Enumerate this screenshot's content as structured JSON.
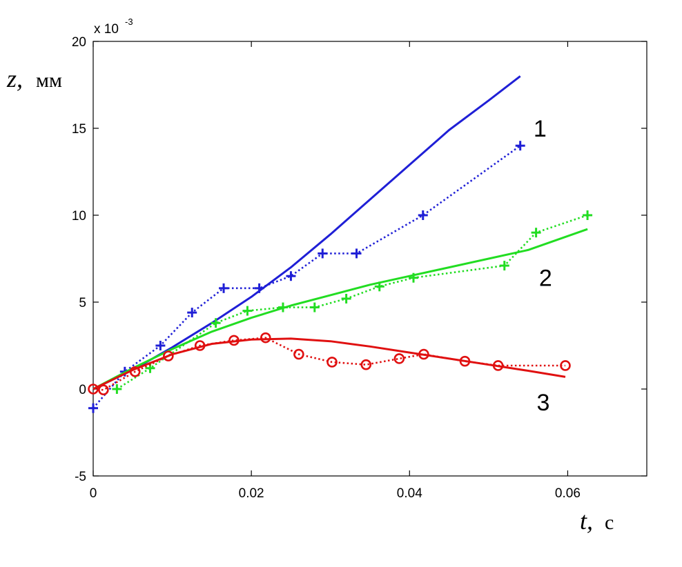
{
  "chart_data": {
    "type": "line",
    "xlim": [
      0,
      0.07
    ],
    "ylim": [
      -5,
      20
    ],
    "x_ticks": [
      0,
      0.02,
      0.04,
      0.06
    ],
    "x_tick_labels": [
      "0",
      "0.02",
      "0.04",
      "0.06"
    ],
    "y_ticks": [
      -5,
      0,
      5,
      10,
      15,
      20
    ],
    "y_tick_labels": [
      "-5",
      "0",
      "5",
      "10",
      "15",
      "20"
    ],
    "y_multiplier": {
      "base": "x 10",
      "exponent": "-3"
    },
    "ylabel": {
      "var": "z,",
      "unit": "мм"
    },
    "xlabel": {
      "var": "t,",
      "unit": "с"
    },
    "grid": false,
    "series": [
      {
        "id": "s1-model",
        "style": "solid",
        "color": "#1f1fd6",
        "marker": "none",
        "x": [
          0,
          0.005,
          0.01,
          0.015,
          0.02,
          0.025,
          0.03,
          0.035,
          0.04,
          0.045,
          0.05,
          0.054
        ],
        "y": [
          0,
          1.1,
          2.4,
          3.8,
          5.3,
          7.0,
          8.9,
          10.9,
          12.9,
          14.9,
          16.6,
          18.0
        ]
      },
      {
        "id": "s1-exp",
        "style": "dotted",
        "color": "#1f1fd6",
        "marker": "plus",
        "x": [
          0,
          0.004,
          0.0085,
          0.0125,
          0.0165,
          0.021,
          0.025,
          0.029,
          0.0333,
          0.0417,
          0.054
        ],
        "y": [
          -1.1,
          1.0,
          2.5,
          4.4,
          5.8,
          5.8,
          6.5,
          7.8,
          7.8,
          10.0,
          14.0
        ]
      },
      {
        "id": "s2-model",
        "style": "solid",
        "color": "#22dd22",
        "marker": "none",
        "x": [
          0,
          0.005,
          0.01,
          0.015,
          0.02,
          0.025,
          0.03,
          0.035,
          0.04,
          0.045,
          0.05,
          0.055,
          0.0625
        ],
        "y": [
          0,
          1.2,
          2.3,
          3.3,
          4.1,
          4.8,
          5.4,
          6.0,
          6.5,
          7.0,
          7.5,
          8.0,
          9.2
        ]
      },
      {
        "id": "s2-exp",
        "style": "dotted",
        "color": "#22dd22",
        "marker": "plus",
        "x": [
          0.003,
          0.0072,
          0.0155,
          0.0195,
          0.024,
          0.028,
          0.032,
          0.0362,
          0.0405,
          0.052,
          0.056,
          0.0625
        ],
        "y": [
          0.0,
          1.2,
          3.8,
          4.5,
          4.7,
          4.7,
          5.2,
          5.9,
          6.4,
          7.1,
          9.0,
          10.0
        ]
      },
      {
        "id": "s3-model",
        "style": "solid",
        "color": "#e01010",
        "marker": "none",
        "x": [
          0,
          0.005,
          0.01,
          0.015,
          0.02,
          0.025,
          0.03,
          0.035,
          0.04,
          0.045,
          0.05,
          0.055,
          0.0597
        ],
        "y": [
          0,
          1.1,
          2.0,
          2.6,
          2.85,
          2.9,
          2.75,
          2.45,
          2.1,
          1.75,
          1.4,
          1.05,
          0.7
        ]
      },
      {
        "id": "s3-exp",
        "style": "dotted",
        "color": "#e01010",
        "marker": "circle",
        "x": [
          0,
          0.0013,
          0.0053,
          0.0095,
          0.0135,
          0.0178,
          0.0218,
          0.026,
          0.0302,
          0.0345,
          0.0387,
          0.0418,
          0.047,
          0.0512,
          0.0597
        ],
        "y": [
          0,
          -0.05,
          1.0,
          1.9,
          2.5,
          2.8,
          2.95,
          2.0,
          1.55,
          1.4,
          1.75,
          2.0,
          1.6,
          1.35,
          1.35
        ]
      }
    ],
    "curve_labels": [
      {
        "text": "1",
        "x": 0.0565,
        "y": 15.0
      },
      {
        "text": "2",
        "x": 0.0572,
        "y": 6.4
      },
      {
        "text": "3",
        "x": 0.0569,
        "y": -0.75
      }
    ]
  }
}
